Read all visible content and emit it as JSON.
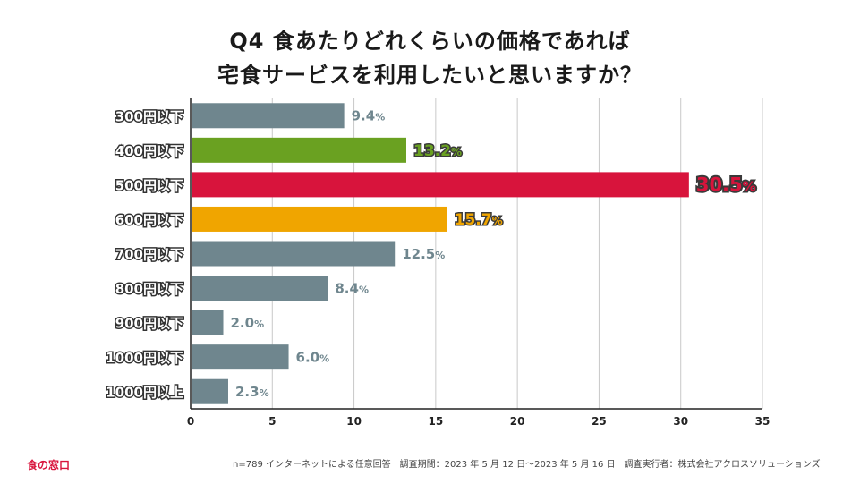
{
  "title_line1": "Q4 食あたりどれくらいの価格であれば",
  "title_line2": "宅食サービスを利用したいと思いますか？",
  "footer_note": "n=789 インターネットによる任意回答　調査期間：2023 年 5 月 12 日〜2023 年 5 月 16 日　調査実行者：株式会社アクロスソリューションズ",
  "brand": "食の窓口",
  "value_suffix": "%",
  "colors": {
    "default": "#6f868e",
    "highlight_300_1": "#6aa121",
    "highlight_500": "#d8143c",
    "highlight_600": "#f0a500",
    "axis": "#222222",
    "grid": "#c8c8c8"
  },
  "chart_data": {
    "type": "bar",
    "orientation": "horizontal",
    "categories": [
      "300円以下",
      "400円以下",
      "500円以下",
      "600円以下",
      "700円以下",
      "800円以下",
      "900円以下",
      "1000円以下",
      "1000円以上"
    ],
    "values": [
      9.4,
      13.2,
      30.5,
      15.7,
      12.5,
      8.4,
      2.0,
      6.0,
      2.3
    ],
    "labels": [
      "9.4",
      "13.2",
      "30.5",
      "15.7",
      "12.5",
      "8.4",
      "2.0",
      "6.0",
      "2.3"
    ],
    "bar_colors": [
      "#6f868e",
      "#6aa121",
      "#d8143c",
      "#f0a500",
      "#6f868e",
      "#6f868e",
      "#6f868e",
      "#6f868e",
      "#6f868e"
    ],
    "emphasized": [
      false,
      true,
      true,
      true,
      false,
      false,
      false,
      false,
      false
    ],
    "xlim": [
      0,
      35
    ],
    "xticks": [
      0,
      5,
      10,
      15,
      20,
      25,
      30,
      35
    ],
    "grid": true
  }
}
